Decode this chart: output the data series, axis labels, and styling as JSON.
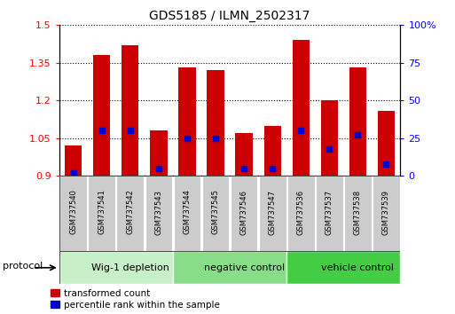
{
  "title": "GDS5185 / ILMN_2502317",
  "samples": [
    "GSM737540",
    "GSM737541",
    "GSM737542",
    "GSM737543",
    "GSM737544",
    "GSM737545",
    "GSM737546",
    "GSM737547",
    "GSM737536",
    "GSM737537",
    "GSM737538",
    "GSM737539"
  ],
  "transformed_count": [
    1.02,
    1.38,
    1.42,
    1.08,
    1.33,
    1.32,
    1.07,
    1.1,
    1.44,
    1.2,
    1.33,
    1.16
  ],
  "percentile_rank": [
    2,
    30,
    30,
    5,
    25,
    25,
    5,
    5,
    30,
    18,
    27,
    8
  ],
  "baseline": 0.9,
  "ylim_left": [
    0.9,
    1.5
  ],
  "ylim_right": [
    0,
    100
  ],
  "yticks_left": [
    0.9,
    1.05,
    1.2,
    1.35,
    1.5
  ],
  "yticks_right": [
    0,
    25,
    50,
    75,
    100
  ],
  "bar_color": "#cc0000",
  "marker_color": "#0000cc",
  "groups": [
    {
      "label": "Wig-1 depletion",
      "start": 0,
      "end": 4
    },
    {
      "label": "negative control",
      "start": 4,
      "end": 8
    },
    {
      "label": "vehicle control",
      "start": 8,
      "end": 12
    }
  ],
  "group_colors": [
    "#c8f0c8",
    "#88dd88",
    "#44cc44"
  ],
  "sample_box_color": "#cccccc",
  "legend_red_label": "transformed count",
  "legend_blue_label": "percentile rank within the sample",
  "protocol_label": "protocol"
}
